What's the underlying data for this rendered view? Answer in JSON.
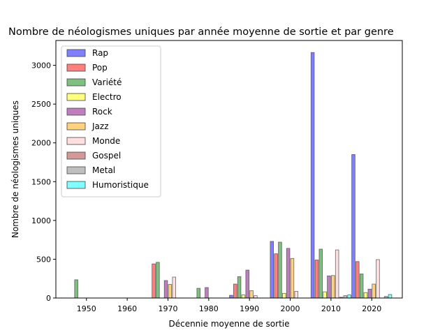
{
  "chart_data": {
    "type": "bar",
    "title": "Nombre de néologismes uniques par année moyenne de sortie et par genre",
    "xlabel": "Décennie moyenne de sortie",
    "ylabel": "Nombre de néologismes uniques",
    "categories": [
      "1950",
      "1960",
      "1970",
      "1980",
      "1990",
      "2000",
      "2010",
      "2020"
    ],
    "ylim": [
      0,
      3320
    ],
    "yticks": [
      0,
      500,
      1000,
      1500,
      2000,
      2500,
      3000
    ],
    "grid": false,
    "legend_position": "top-left",
    "series": [
      {
        "name": "Rap",
        "color": "#7f7fff",
        "values": [
          0,
          0,
          0,
          0,
          35,
          730,
          3165,
          1850
        ]
      },
      {
        "name": "Pop",
        "color": "#ff7f7f",
        "values": [
          0,
          0,
          440,
          0,
          180,
          570,
          490,
          470
        ]
      },
      {
        "name": "Variété",
        "color": "#7fbf7f",
        "values": [
          235,
          0,
          460,
          125,
          275,
          720,
          630,
          310
        ]
      },
      {
        "name": "Electro",
        "color": "#ffff7f",
        "values": [
          0,
          0,
          0,
          0,
          40,
          60,
          80,
          70
        ]
      },
      {
        "name": "Rock",
        "color": "#bf7fbf",
        "values": [
          0,
          0,
          225,
          135,
          360,
          640,
          285,
          115
        ]
      },
      {
        "name": "Jazz",
        "color": "#ffd27f",
        "values": [
          0,
          0,
          175,
          0,
          95,
          510,
          290,
          180
        ]
      },
      {
        "name": "Monde",
        "color": "#ffdfdf",
        "values": [
          0,
          0,
          270,
          0,
          30,
          85,
          620,
          495
        ]
      },
      {
        "name": "Gospel",
        "color": "#d39999",
        "values": [
          0,
          0,
          0,
          0,
          0,
          0,
          10,
          0
        ]
      },
      {
        "name": "Metal",
        "color": "#bfbfbf",
        "values": [
          0,
          0,
          0,
          0,
          0,
          0,
          30,
          20
        ]
      },
      {
        "name": "Humoristique",
        "color": "#7fffff",
        "values": [
          0,
          0,
          0,
          0,
          0,
          0,
          40,
          45
        ]
      }
    ]
  }
}
